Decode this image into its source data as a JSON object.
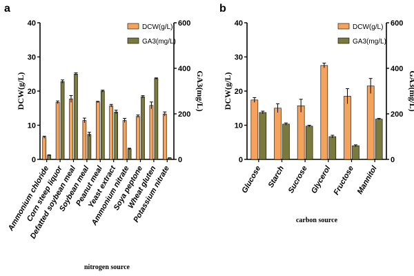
{
  "colors": {
    "dcw": "#f5a25d",
    "ga3": "#7a7a3e",
    "axis": "#000000"
  },
  "chart_data": [
    {
      "type": "bar",
      "panel": "a",
      "categories": [
        "Ammonium chloride",
        "Corn steep liquor",
        "Defatted soybean meal",
        "Soybean meal",
        "Peanut meal",
        "Yeast extract",
        "Ammonium nitrate",
        "Soya peptone",
        "Wheat gluten",
        "Potassium nitrate"
      ],
      "series": [
        {
          "name": "DCW(g/L)",
          "axis": "left",
          "values": [
            6.5,
            16.7,
            17.7,
            11.4,
            16.8,
            15.7,
            11.4,
            12.6,
            15.8,
            13.3
          ],
          "errors": [
            0.3,
            0.4,
            1.0,
            0.7,
            0.2,
            0.4,
            0.6,
            0.4,
            1.0,
            0.6
          ]
        },
        {
          "name": "GA3(mg/L)",
          "axis": "right",
          "values": [
            18,
            342,
            375,
            110,
            300,
            208,
            46,
            275,
            355,
            6
          ],
          "errors": [
            2,
            7,
            5,
            9,
            4,
            8,
            3,
            5,
            3,
            1
          ]
        }
      ],
      "xlabel": "nitrogen source",
      "ylabel": "DCW(g/L)",
      "y2label": "GA3(mg/L)",
      "ylim": [
        0,
        40
      ],
      "yticks": [
        0,
        10,
        20,
        30,
        40
      ],
      "y2lim": [
        0,
        600
      ],
      "y2ticks": [
        0,
        200,
        400,
        600
      ],
      "legend_position": "top-right"
    },
    {
      "type": "bar",
      "panel": "b",
      "categories": [
        "Glucose",
        "Starch",
        "Sucrose",
        "Glycerol",
        "Fructose",
        "Mannitol"
      ],
      "series": [
        {
          "name": "DCW(g/L)",
          "axis": "left",
          "values": [
            17.4,
            15.0,
            15.7,
            27.5,
            18.5,
            21.5
          ],
          "errors": [
            0.7,
            1.3,
            1.9,
            0.7,
            2.2,
            2.2
          ]
        },
        {
          "name": "GA3(mg/L)",
          "axis": "right",
          "values": [
            206,
            155,
            146,
            100,
            60,
            177
          ],
          "errors": [
            6,
            5,
            4,
            6,
            4,
            3
          ]
        }
      ],
      "xlabel": "carbon source",
      "ylabel": "DCW(g/L)",
      "y2label": "GA3(mg/L)",
      "ylim": [
        0,
        40
      ],
      "yticks": [
        0,
        10,
        20,
        30,
        40
      ],
      "y2lim": [
        0,
        600
      ],
      "y2ticks": [
        0,
        200,
        400,
        600
      ],
      "legend_position": "top-right"
    }
  ]
}
